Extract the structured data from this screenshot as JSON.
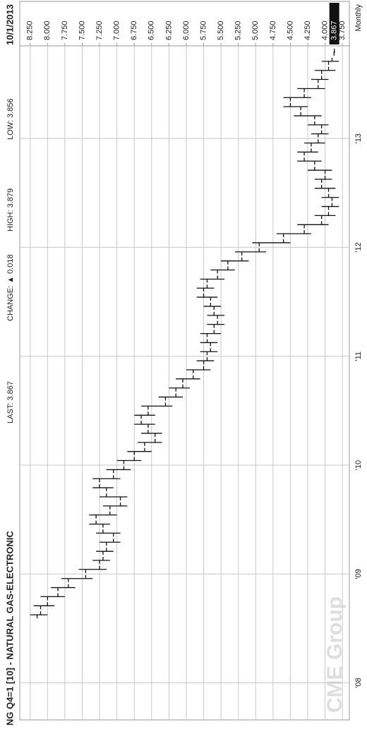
{
  "chart_data": {
    "type": "ohlc",
    "title": "NG Q4=1 [10] - NATURAL GAS-ELECTRONIC",
    "annotations": [
      "LAST: 3.867",
      "CHANGE: ▲ 0.018",
      "HIGH: 3.879",
      "LOW: 3.856"
    ],
    "date": "10/1/2013",
    "period": "Monthly",
    "watermark": "CME Group",
    "color": "#111111",
    "grid": true,
    "x": [
      2008.625,
      2008.708,
      2008.792,
      2008.875,
      2008.958,
      2009.042,
      2009.125,
      2009.208,
      2009.292,
      2009.375,
      2009.458,
      2009.542,
      2009.625,
      2009.708,
      2009.792,
      2009.875,
      2009.958,
      2010.042,
      2010.125,
      2010.208,
      2010.292,
      2010.375,
      2010.458,
      2010.542,
      2010.625,
      2010.708,
      2010.792,
      2010.875,
      2010.958,
      2011.042,
      2011.125,
      2011.208,
      2011.292,
      2011.375,
      2011.458,
      2011.542,
      2011.625,
      2011.708,
      2011.792,
      2011.875,
      2011.958,
      2012.042,
      2012.125,
      2012.208,
      2012.292,
      2012.375,
      2012.458,
      2012.542,
      2012.625,
      2012.708,
      2012.792,
      2012.875,
      2012.958,
      2013.042,
      2013.125,
      2013.208,
      2013.292,
      2013.375,
      2013.458,
      2013.542,
      2013.625,
      2013.708,
      2013.792
    ],
    "open": [
      8.15,
      8.1,
      8.0,
      7.85,
      7.7,
      7.45,
      7.25,
      7.2,
      7.15,
      7.05,
      7.2,
      7.3,
      7.1,
      6.95,
      7.15,
      7.25,
      7.05,
      6.9,
      6.75,
      6.6,
      6.45,
      6.55,
      6.65,
      6.55,
      6.3,
      6.15,
      6.05,
      5.9,
      5.75,
      5.7,
      5.65,
      5.7,
      5.6,
      5.55,
      5.6,
      5.65,
      5.75,
      5.7,
      5.55,
      5.4,
      5.2,
      4.95,
      4.6,
      4.3,
      4.05,
      3.95,
      3.9,
      3.95,
      4.05,
      4.0,
      4.15,
      4.3,
      4.2,
      4.1,
      4.05,
      4.15,
      4.35,
      4.5,
      4.3,
      4.1,
      4.05,
      3.95,
      3.87
    ],
    "high": [
      8.25,
      8.2,
      8.1,
      7.95,
      7.8,
      7.55,
      7.35,
      7.3,
      7.25,
      7.3,
      7.4,
      7.4,
      7.2,
      7.25,
      7.35,
      7.35,
      7.15,
      7.0,
      6.85,
      6.7,
      6.65,
      6.75,
      6.75,
      6.65,
      6.4,
      6.25,
      6.15,
      6.0,
      5.85,
      5.8,
      5.8,
      5.8,
      5.7,
      5.7,
      5.75,
      5.85,
      5.85,
      5.8,
      5.65,
      5.5,
      5.3,
      5.05,
      4.7,
      4.4,
      4.15,
      4.05,
      4.05,
      4.15,
      4.15,
      4.25,
      4.4,
      4.4,
      4.3,
      4.2,
      4.25,
      4.45,
      4.6,
      4.6,
      4.4,
      4.2,
      4.15,
      4.05,
      3.879
    ],
    "low": [
      8.0,
      7.9,
      7.75,
      7.6,
      7.35,
      7.15,
      7.1,
      7.05,
      6.95,
      6.95,
      7.1,
      7.0,
      6.85,
      6.85,
      7.05,
      6.95,
      6.8,
      6.65,
      6.5,
      6.35,
      6.35,
      6.45,
      6.45,
      6.2,
      6.05,
      5.95,
      5.8,
      5.65,
      5.6,
      5.55,
      5.55,
      5.5,
      5.45,
      5.45,
      5.5,
      5.55,
      5.6,
      5.45,
      5.3,
      5.1,
      4.85,
      4.5,
      4.2,
      3.95,
      3.85,
      3.8,
      3.8,
      3.85,
      3.9,
      3.9,
      4.05,
      4.1,
      4.0,
      3.95,
      3.95,
      4.05,
      4.25,
      4.2,
      4.0,
      3.95,
      3.85,
      3.8,
      3.856
    ],
    "close": [
      8.1,
      8.0,
      7.85,
      7.7,
      7.45,
      7.25,
      7.2,
      7.15,
      7.05,
      7.2,
      7.3,
      7.1,
      6.95,
      7.15,
      7.25,
      7.05,
      6.9,
      6.75,
      6.6,
      6.45,
      6.55,
      6.65,
      6.55,
      6.3,
      6.15,
      6.05,
      5.9,
      5.75,
      5.7,
      5.65,
      5.7,
      5.6,
      5.55,
      5.6,
      5.65,
      5.75,
      5.7,
      5.55,
      5.4,
      5.2,
      4.95,
      4.6,
      4.3,
      4.05,
      3.95,
      3.9,
      3.95,
      4.05,
      4.0,
      4.15,
      4.3,
      4.2,
      4.1,
      4.05,
      4.15,
      4.35,
      4.5,
      4.3,
      4.1,
      4.05,
      3.95,
      3.9,
      3.867
    ],
    "xlim": [
      2007.66,
      2013.85
    ],
    "xticks": [
      {
        "value": 2008,
        "label": "'08"
      },
      {
        "value": 2009,
        "label": "'09"
      },
      {
        "value": 2010,
        "label": "'10"
      },
      {
        "value": 2011,
        "label": "'11"
      },
      {
        "value": 2012,
        "label": "'12"
      },
      {
        "value": 2013,
        "label": "'13"
      }
    ],
    "ylim": [
      3.65,
      8.4
    ],
    "yticks": [
      {
        "value": 3.75,
        "label": "3.750"
      },
      {
        "value": 4,
        "label": "4.000"
      },
      {
        "value": 4.25,
        "label": "4.250"
      },
      {
        "value": 4.5,
        "label": "4.500"
      },
      {
        "value": 4.75,
        "label": "4.750"
      },
      {
        "value": 5,
        "label": "5.000"
      },
      {
        "value": 5.25,
        "label": "5.250"
      },
      {
        "value": 5.5,
        "label": "5.500"
      },
      {
        "value": 5.75,
        "label": "5.750"
      },
      {
        "value": 6,
        "label": "6.000"
      },
      {
        "value": 6.25,
        "label": "6.250"
      },
      {
        "value": 6.5,
        "label": "6.500"
      },
      {
        "value": 6.75,
        "label": "6.750"
      },
      {
        "value": 7,
        "label": "7.000"
      },
      {
        "value": 7.25,
        "label": "7.250"
      },
      {
        "value": 7.5,
        "label": "7.500"
      },
      {
        "value": 7.75,
        "label": "7.750"
      },
      {
        "value": 8,
        "label": "8.000"
      },
      {
        "value": 8.25,
        "label": "8.250"
      }
    ]
  }
}
